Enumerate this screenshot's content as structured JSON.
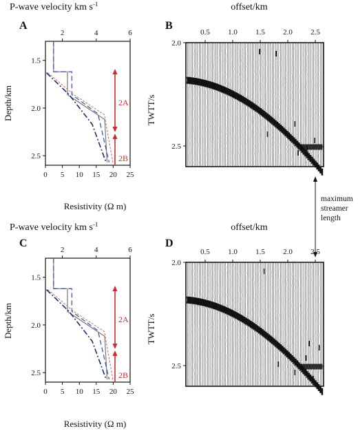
{
  "figure": {
    "panels": {
      "A": "A",
      "B": "B",
      "C": "C",
      "D": "D"
    },
    "velocity_title_main": "P-wave velocity km s",
    "velocity_title_sup": "-1",
    "offset_title": "offset/km",
    "depth_label": "Depth/km",
    "resistivity_label": "Resistivity (Ω m)",
    "twtt_label": "TWTT/s",
    "annotation_2A": "2A",
    "annotation_2B": "2B",
    "streamer_note": [
      "maximum",
      "streamer",
      "length"
    ],
    "colors": {
      "red_arrow": "#cc2b2b",
      "navy": "#1f2a6b",
      "blue_dash": "#4455aa",
      "grey": "#777777",
      "pink": "#d07070"
    }
  },
  "chart_data": [
    {
      "type": "line",
      "panel": "A",
      "x_top_label": "P-wave velocity km s-1",
      "x_top_ticks": [
        "2",
        "4",
        "6"
      ],
      "x_bottom_label": "Resistivity (Ω m)",
      "x_bottom_ticks": [
        "0",
        "5",
        "10",
        "15",
        "20",
        "25"
      ],
      "y_label": "Depth/km",
      "y_ticks": [
        "1.5",
        "2.0",
        "2.5"
      ],
      "ylim": [
        1.3,
        2.6
      ],
      "series": [
        {
          "style": "grey-solid",
          "x": [
            2.4,
            2.4,
            6.5,
            6.5,
            17.5,
            18.2
          ],
          "y": [
            1.3,
            1.62,
            1.62,
            1.86,
            2.12,
            2.57
          ]
        },
        {
          "style": "blue-dash",
          "x": [
            2.4,
            2.4,
            7.8,
            7.8,
            15.5,
            18.8
          ],
          "y": [
            1.3,
            1.62,
            1.62,
            1.86,
            2.06,
            2.57
          ]
        },
        {
          "style": "navy-dashdot",
          "x": [
            0.3,
            7.0,
            13.8,
            17.9
          ],
          "y": [
            1.63,
            1.86,
            2.17,
            2.57
          ]
        },
        {
          "style": "pink-dashed",
          "x": [
            0.7,
            8.4,
            17.4,
            19.9
          ],
          "y": [
            1.63,
            1.86,
            2.07,
            2.57
          ]
        }
      ],
      "annotations": [
        "2A",
        "2B"
      ]
    },
    {
      "type": "heatmap",
      "panel": "B",
      "x_label": "offset/km",
      "x_ticks": [
        "0.5",
        "1.0",
        "1.5",
        "2.0",
        "2.5"
      ],
      "y_label": "TWTT/s",
      "y_ticks": [
        "2.0",
        "2.5"
      ],
      "ylim": [
        2.0,
        2.6
      ]
    },
    {
      "type": "line",
      "panel": "C",
      "x_top_label": "P-wave velocity km s-1",
      "x_top_ticks": [
        "2",
        "4",
        "6"
      ],
      "x_bottom_label": "Resistivity (Ω m)",
      "x_bottom_ticks": [
        "0",
        "5",
        "10",
        "15",
        "20",
        "25"
      ],
      "y_label": "Depth/km",
      "y_ticks": [
        "1.5",
        "2.0",
        "2.5"
      ],
      "ylim": [
        1.3,
        2.6
      ],
      "series": [
        {
          "style": "grey-solid",
          "x": [
            2.4,
            2.4,
            6.5,
            6.5,
            17.5,
            18.2
          ],
          "y": [
            1.3,
            1.62,
            1.62,
            1.86,
            2.12,
            2.57
          ]
        },
        {
          "style": "blue-dash",
          "x": [
            2.4,
            2.4,
            7.8,
            7.8,
            15.5,
            18.8
          ],
          "y": [
            1.3,
            1.62,
            1.62,
            1.86,
            2.06,
            2.57
          ]
        },
        {
          "style": "navy-dashdot",
          "x": [
            0.3,
            7.0,
            13.8,
            17.9
          ],
          "y": [
            1.63,
            1.86,
            2.17,
            2.57
          ]
        },
        {
          "style": "pink-dashed",
          "x": [
            0.7,
            8.4,
            17.4,
            19.9
          ],
          "y": [
            1.63,
            1.86,
            2.07,
            2.57
          ]
        }
      ],
      "annotations": [
        "2A",
        "2B"
      ]
    },
    {
      "type": "heatmap",
      "panel": "D",
      "x_label": "offset/km",
      "x_ticks": [
        "0.5",
        "1.0",
        "1.5",
        "2.0",
        "2.5"
      ],
      "y_label": "TWTT/s",
      "y_ticks": [
        "2.0",
        "2.5"
      ],
      "ylim": [
        2.0,
        2.6
      ]
    }
  ]
}
